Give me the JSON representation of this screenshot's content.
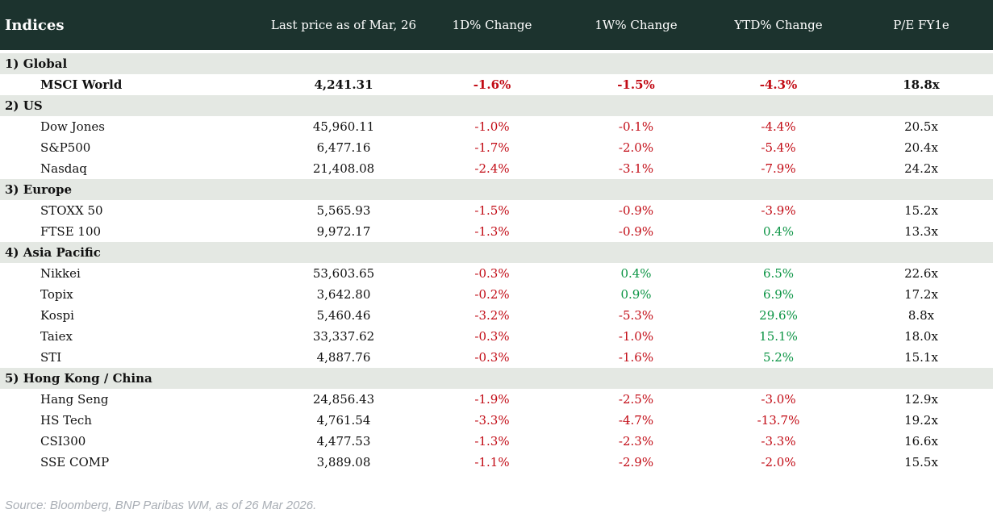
{
  "colors": {
    "header_bg": "#1c332e",
    "header_text": "#ffffff",
    "section_bg": "#e4e8e3",
    "negative": "#c20b15",
    "positive": "#0b9444",
    "text": "#111111",
    "source_text": "#a9aeb5"
  },
  "table": {
    "columns": [
      "Indices",
      "Last price as of Mar, 26",
      "1D% Change",
      "1W% Change",
      "YTD% Change",
      "P/E FY1e"
    ],
    "sections": [
      {
        "label": "1) Global",
        "rows": [
          {
            "name": "MSCI World",
            "last_price": "4,241.31",
            "d1": "-1.6%",
            "w1": "-1.5%",
            "ytd": "-4.3%",
            "pe": "18.8x",
            "bold": true
          }
        ]
      },
      {
        "label": "2) US",
        "rows": [
          {
            "name": "Dow Jones",
            "last_price": "45,960.11",
            "d1": "-1.0%",
            "w1": "-0.1%",
            "ytd": "-4.4%",
            "pe": "20.5x"
          },
          {
            "name": "S&P500",
            "last_price": "6,477.16",
            "d1": "-1.7%",
            "w1": "-2.0%",
            "ytd": "-5.4%",
            "pe": "20.4x"
          },
          {
            "name": "Nasdaq",
            "last_price": "21,408.08",
            "d1": "-2.4%",
            "w1": "-3.1%",
            "ytd": "-7.9%",
            "pe": "24.2x"
          }
        ]
      },
      {
        "label": "3) Europe",
        "rows": [
          {
            "name": "STOXX 50",
            "last_price": "5,565.93",
            "d1": "-1.5%",
            "w1": "-0.9%",
            "ytd": "-3.9%",
            "pe": "15.2x"
          },
          {
            "name": "FTSE 100",
            "last_price": "9,972.17",
            "d1": "-1.3%",
            "w1": "-0.9%",
            "ytd": "0.4%",
            "pe": "13.3x"
          }
        ]
      },
      {
        "label": "4) Asia Pacific",
        "rows": [
          {
            "name": "Nikkei",
            "last_price": "53,603.65",
            "d1": "-0.3%",
            "w1": "0.4%",
            "ytd": "6.5%",
            "pe": "22.6x"
          },
          {
            "name": "Topix",
            "last_price": "3,642.80",
            "d1": "-0.2%",
            "w1": "0.9%",
            "ytd": "6.9%",
            "pe": "17.2x"
          },
          {
            "name": "Kospi",
            "last_price": "5,460.46",
            "d1": "-3.2%",
            "w1": "-5.3%",
            "ytd": "29.6%",
            "pe": "8.8x"
          },
          {
            "name": "Taiex",
            "last_price": "33,337.62",
            "d1": "-0.3%",
            "w1": "-1.0%",
            "ytd": "15.1%",
            "pe": "18.0x"
          },
          {
            "name": "STI",
            "last_price": "4,887.76",
            "d1": "-0.3%",
            "w1": "-1.6%",
            "ytd": "5.2%",
            "pe": "15.1x"
          }
        ]
      },
      {
        "label": "5) Hong Kong / China",
        "rows": [
          {
            "name": "Hang Seng",
            "last_price": "24,856.43",
            "d1": "-1.9%",
            "w1": "-2.5%",
            "ytd": "-3.0%",
            "pe": "12.9x"
          },
          {
            "name": "HS Tech",
            "last_price": "4,761.54",
            "d1": "-3.3%",
            "w1": "-4.7%",
            "ytd": "-13.7%",
            "pe": "19.2x"
          },
          {
            "name": "CSI300",
            "last_price": "4,477.53",
            "d1": "-1.3%",
            "w1": "-2.3%",
            "ytd": "-3.3%",
            "pe": "16.6x"
          },
          {
            "name": "SSE COMP",
            "last_price": "3,889.08",
            "d1": "-1.1%",
            "w1": "-2.9%",
            "ytd": "-2.0%",
            "pe": "15.5x"
          }
        ]
      }
    ]
  },
  "footer": {
    "source": "Source: Bloomberg, BNP Paribas WM, as of 26 Mar 2026."
  }
}
